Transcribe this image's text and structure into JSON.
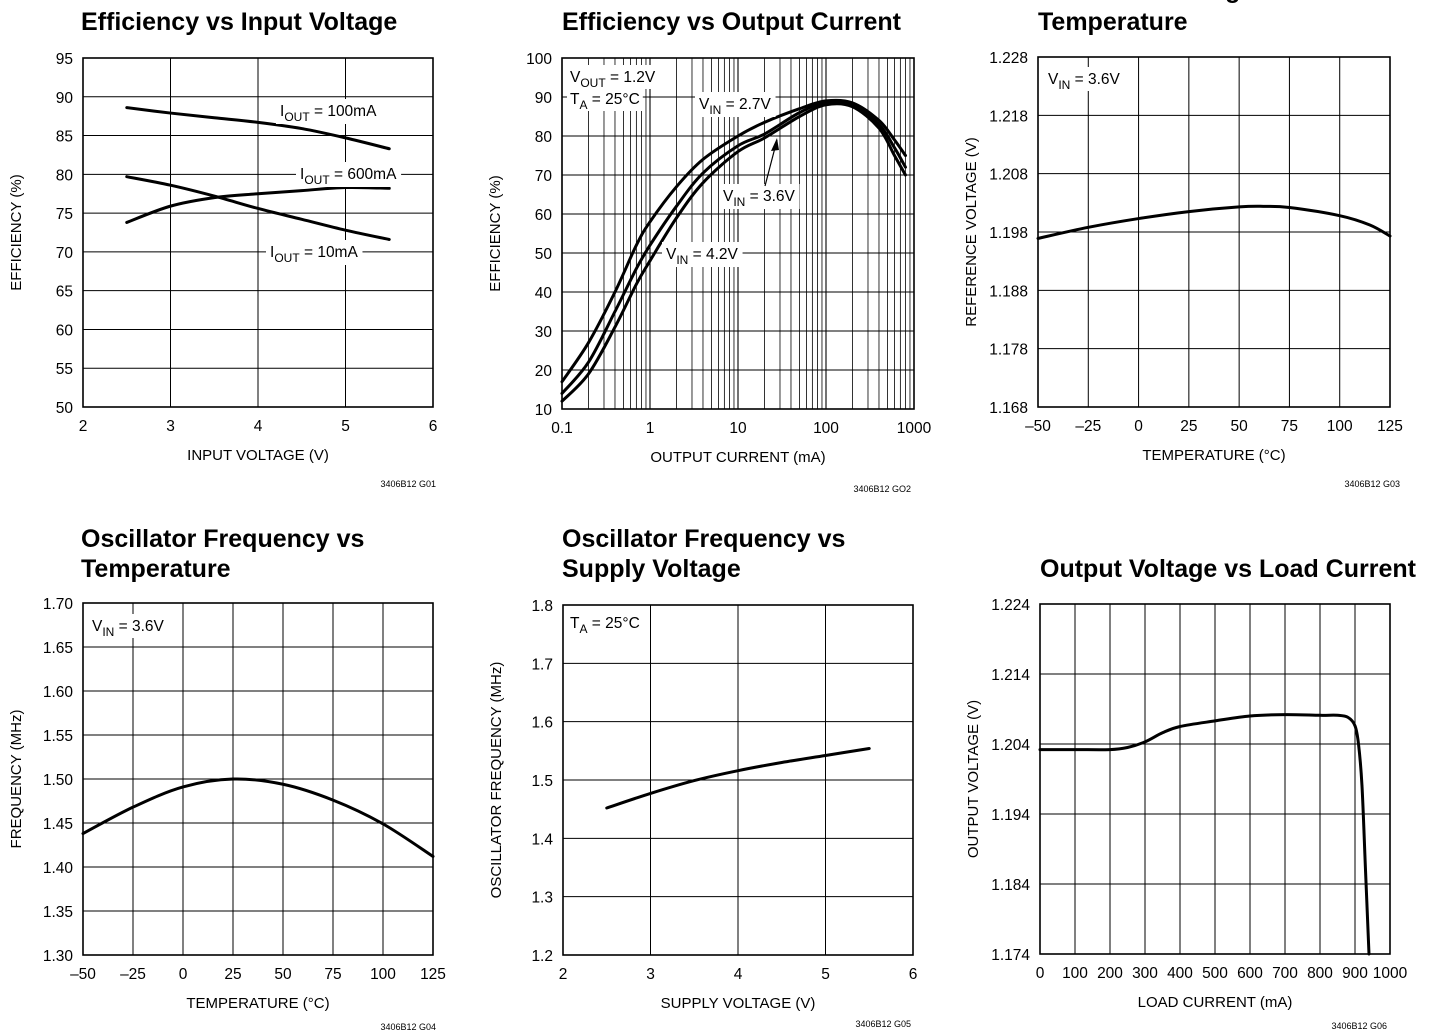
{
  "chart_data": [
    {
      "type": "line",
      "title": "Efficiency vs Input Voltage",
      "xlabel": "INPUT VOLTAGE (V)",
      "ylabel": "EFFICIENCY (%)",
      "xlim": [
        2,
        6
      ],
      "ylim": [
        50,
        95
      ],
      "x_ticks": [
        2,
        3,
        4,
        5,
        6
      ],
      "y_ticks": [
        50,
        55,
        60,
        65,
        70,
        75,
        80,
        85,
        90,
        95
      ],
      "grid": true,
      "code": "3406B12 G01",
      "series": [
        {
          "name": "IOUT = 100mA",
          "points": [
            [
              2.5,
              88.6
            ],
            [
              3,
              87.9
            ],
            [
              3.5,
              87.3
            ],
            [
              4,
              86.7
            ],
            [
              4.5,
              85.9
            ],
            [
              5,
              84.7
            ],
            [
              5.5,
              83.3
            ]
          ]
        },
        {
          "name": "IOUT = 600mA",
          "points": [
            [
              2.5,
              73.8
            ],
            [
              3,
              75.9
            ],
            [
              3.5,
              77
            ],
            [
              4,
              77.5
            ],
            [
              4.5,
              77.9
            ],
            [
              5,
              78.3
            ],
            [
              5.5,
              78.2
            ]
          ]
        },
        {
          "name": "IOUT = 10mA",
          "points": [
            [
              2.5,
              79.7
            ],
            [
              3,
              78.6
            ],
            [
              3.5,
              77.2
            ],
            [
              4,
              75.6
            ],
            [
              4.5,
              74.2
            ],
            [
              5,
              72.8
            ],
            [
              5.5,
              71.6
            ]
          ]
        }
      ],
      "annotations": [
        {
          "main": "I",
          "sub": "OUT",
          "rest": " = 100mA"
        },
        {
          "main": "I",
          "sub": "OUT",
          "rest": " = 600mA"
        },
        {
          "main": "I",
          "sub": "OUT",
          "rest": " = 10mA"
        }
      ]
    },
    {
      "type": "line",
      "title": "Efficiency vs Output Current",
      "xlabel": "OUTPUT CURRENT (mA)",
      "ylabel": "EFFICIENCY (%)",
      "xscale": "log",
      "xlim": [
        0.1,
        1000
      ],
      "ylim": [
        10,
        100
      ],
      "x_ticks": [
        0.1,
        1,
        10,
        100,
        1000
      ],
      "x_tick_labels": [
        "0.1",
        "1",
        "10",
        "100",
        "1000"
      ],
      "y_ticks": [
        10,
        20,
        30,
        40,
        50,
        60,
        70,
        80,
        90,
        100
      ],
      "grid": true,
      "code": "3406B12 GO2",
      "series": [
        {
          "name": "VIN = 2.7V",
          "points": [
            [
              0.1,
              17
            ],
            [
              0.2,
              27
            ],
            [
              0.4,
              40
            ],
            [
              0.7,
              52
            ],
            [
              1,
              58
            ],
            [
              2,
              67
            ],
            [
              4,
              74
            ],
            [
              10,
              80
            ],
            [
              20,
              83.5
            ],
            [
              50,
              87
            ],
            [
              100,
              89
            ],
            [
              200,
              88.5
            ],
            [
              400,
              84
            ],
            [
              600,
              79
            ],
            [
              800,
              75
            ]
          ]
        },
        {
          "name": "VIN = 3.6V",
          "points": [
            [
              0.1,
              14
            ],
            [
              0.2,
              22
            ],
            [
              0.4,
              35
            ],
            [
              0.7,
              46
            ],
            [
              1,
              52
            ],
            [
              2,
              62
            ],
            [
              4,
              70.5
            ],
            [
              10,
              77.5
            ],
            [
              20,
              80.5
            ],
            [
              50,
              86
            ],
            [
              100,
              88.5
            ],
            [
              200,
              88
            ],
            [
              400,
              83
            ],
            [
              600,
              77
            ],
            [
              800,
              72
            ]
          ]
        },
        {
          "name": "VIN = 4.2V",
          "points": [
            [
              0.1,
              12
            ],
            [
              0.2,
              19
            ],
            [
              0.4,
              31
            ],
            [
              0.7,
              42
            ],
            [
              1,
              48
            ],
            [
              2,
              59
            ],
            [
              4,
              68
            ],
            [
              10,
              76
            ],
            [
              20,
              79.5
            ],
            [
              50,
              85
            ],
            [
              100,
              88
            ],
            [
              200,
              87.5
            ],
            [
              400,
              82
            ],
            [
              600,
              75
            ],
            [
              800,
              70
            ]
          ]
        }
      ],
      "conditions": [
        {
          "main": "V",
          "sub": "OUT",
          "rest": " =  1.2V"
        },
        {
          "main": "T",
          "sub": "A",
          "rest": " = 25°C"
        }
      ],
      "annotations": [
        {
          "main": "V",
          "sub": "IN",
          "rest": " = 2.7V"
        },
        {
          "main": "V",
          "sub": "IN",
          "rest": " = 3.6V"
        },
        {
          "main": "V",
          "sub": "IN",
          "rest": " = 4.2V"
        }
      ]
    },
    {
      "type": "line",
      "title": "Reference Voltage vs Temperature",
      "title_lines": [
        "Reference Voltage vs",
        "Temperature"
      ],
      "xlabel": "TEMPERATURE (°C)",
      "ylabel": "REFERENCE VOLTAGE (V)",
      "xlim": [
        -50,
        125
      ],
      "ylim": [
        1.168,
        1.228
      ],
      "x_ticks": [
        -50,
        -25,
        0,
        25,
        50,
        75,
        100,
        125
      ],
      "x_tick_labels": [
        "–50",
        "–25",
        "0",
        "25",
        "50",
        "75",
        "100",
        "125"
      ],
      "y_ticks": [
        1.168,
        1.178,
        1.188,
        1.198,
        1.208,
        1.218,
        1.228
      ],
      "y_tick_labels": [
        "1.168",
        "1.178",
        "1.188",
        "1.198",
        "1.208",
        "1.218",
        "1.228"
      ],
      "grid": true,
      "code": "3406B12 G03",
      "series": [
        {
          "name": "",
          "points": [
            [
              -50,
              1.1969
            ],
            [
              -25,
              1.1988
            ],
            [
              0,
              1.2003
            ],
            [
              25,
              1.2015
            ],
            [
              50,
              1.2023
            ],
            [
              62,
              1.2024
            ],
            [
              75,
              1.2022
            ],
            [
              100,
              1.2008
            ],
            [
              115,
              1.1992
            ],
            [
              125,
              1.1973
            ]
          ]
        }
      ],
      "conditions": [
        {
          "main": "V",
          "sub": "IN",
          "rest": " = 3.6V"
        }
      ]
    },
    {
      "type": "line",
      "title": "Oscillator Frequency vs Temperature",
      "title_lines": [
        "Oscillator Frequency vs",
        "Temperature"
      ],
      "xlabel": "TEMPERATURE (°C)",
      "ylabel": "FREQUENCY (MHz)",
      "xlim": [
        -50,
        125
      ],
      "ylim": [
        1.3,
        1.7
      ],
      "x_ticks": [
        -50,
        -25,
        0,
        25,
        50,
        75,
        100,
        125
      ],
      "x_tick_labels": [
        "–50",
        "–25",
        "0",
        "25",
        "50",
        "75",
        "100",
        "125"
      ],
      "y_ticks": [
        1.3,
        1.35,
        1.4,
        1.45,
        1.5,
        1.55,
        1.6,
        1.65,
        1.7
      ],
      "y_tick_labels": [
        "1.30",
        "1.35",
        "1.40",
        "1.45",
        "1.50",
        "1.55",
        "1.60",
        "1.65",
        "1.70"
      ],
      "grid": true,
      "code": "3406B12 G04",
      "series": [
        {
          "name": "",
          "points": [
            [
              -50,
              1.438
            ],
            [
              -25,
              1.468
            ],
            [
              0,
              1.491
            ],
            [
              25,
              1.5
            ],
            [
              50,
              1.494
            ],
            [
              75,
              1.476
            ],
            [
              100,
              1.449
            ],
            [
              125,
              1.412
            ]
          ]
        }
      ],
      "conditions": [
        {
          "main": "V",
          "sub": "IN",
          "rest": " = 3.6V"
        }
      ]
    },
    {
      "type": "line",
      "title": "Oscillator Frequency vs Supply Voltage",
      "title_lines": [
        "Oscillator Frequency vs",
        "Supply Voltage"
      ],
      "xlabel": "SUPPLY VOLTAGE (V)",
      "ylabel": "OSCILLATOR FREQUENCY (MHz)",
      "xlim": [
        2,
        6
      ],
      "ylim": [
        1.2,
        1.8
      ],
      "x_ticks": [
        2,
        3,
        4,
        5,
        6
      ],
      "y_ticks": [
        1.2,
        1.3,
        1.4,
        1.5,
        1.6,
        1.7,
        1.8
      ],
      "y_tick_labels": [
        "1.2",
        "1.3",
        "1.4",
        "1.5",
        "1.6",
        "1.7",
        "1.8"
      ],
      "grid": true,
      "code": "3406B12 G05",
      "series": [
        {
          "name": "",
          "points": [
            [
              2.5,
              1.452
            ],
            [
              3,
              1.477
            ],
            [
              3.5,
              1.499
            ],
            [
              4,
              1.516
            ],
            [
              4.5,
              1.53
            ],
            [
              5,
              1.542
            ],
            [
              5.5,
              1.554
            ]
          ]
        }
      ],
      "conditions": [
        {
          "main": "T",
          "sub": "A",
          "rest": " = 25°C"
        }
      ]
    },
    {
      "type": "line",
      "title": "Output Voltage vs Load Current",
      "xlabel": "LOAD CURRENT (mA)",
      "ylabel": "OUTPUT VOLTAGE (V)",
      "xlim": [
        0,
        1000
      ],
      "ylim": [
        1.174,
        1.224
      ],
      "x_ticks": [
        0,
        100,
        200,
        300,
        400,
        500,
        600,
        700,
        800,
        900,
        1000
      ],
      "x_tick_labels": [
        "0",
        "100",
        "200",
        "300",
        "400",
        "500",
        "600",
        "700",
        "800",
        "900",
        "1000"
      ],
      "y_ticks": [
        1.174,
        1.184,
        1.194,
        1.204,
        1.214,
        1.224
      ],
      "y_tick_labels": [
        "1.174",
        "1.184",
        "1.194",
        "1.204",
        "1.214",
        "1.224"
      ],
      "grid": true,
      "code": "3406B12 G06",
      "series": [
        {
          "name": "",
          "points": [
            [
              0,
              1.2032
            ],
            [
              100,
              1.2032
            ],
            [
              200,
              1.2032
            ],
            [
              250,
              1.2035
            ],
            [
              300,
              1.2043
            ],
            [
              350,
              1.2056
            ],
            [
              400,
              1.2065
            ],
            [
              500,
              1.2073
            ],
            [
              600,
              1.208
            ],
            [
              700,
              1.2082
            ],
            [
              800,
              1.2081
            ],
            [
              850,
              1.2081
            ],
            [
              880,
              1.2078
            ],
            [
              900,
              1.2066
            ],
            [
              910,
              1.204
            ],
            [
              920,
              1.198
            ],
            [
              930,
              1.186
            ],
            [
              940,
              1.174
            ]
          ]
        }
      ]
    }
  ]
}
